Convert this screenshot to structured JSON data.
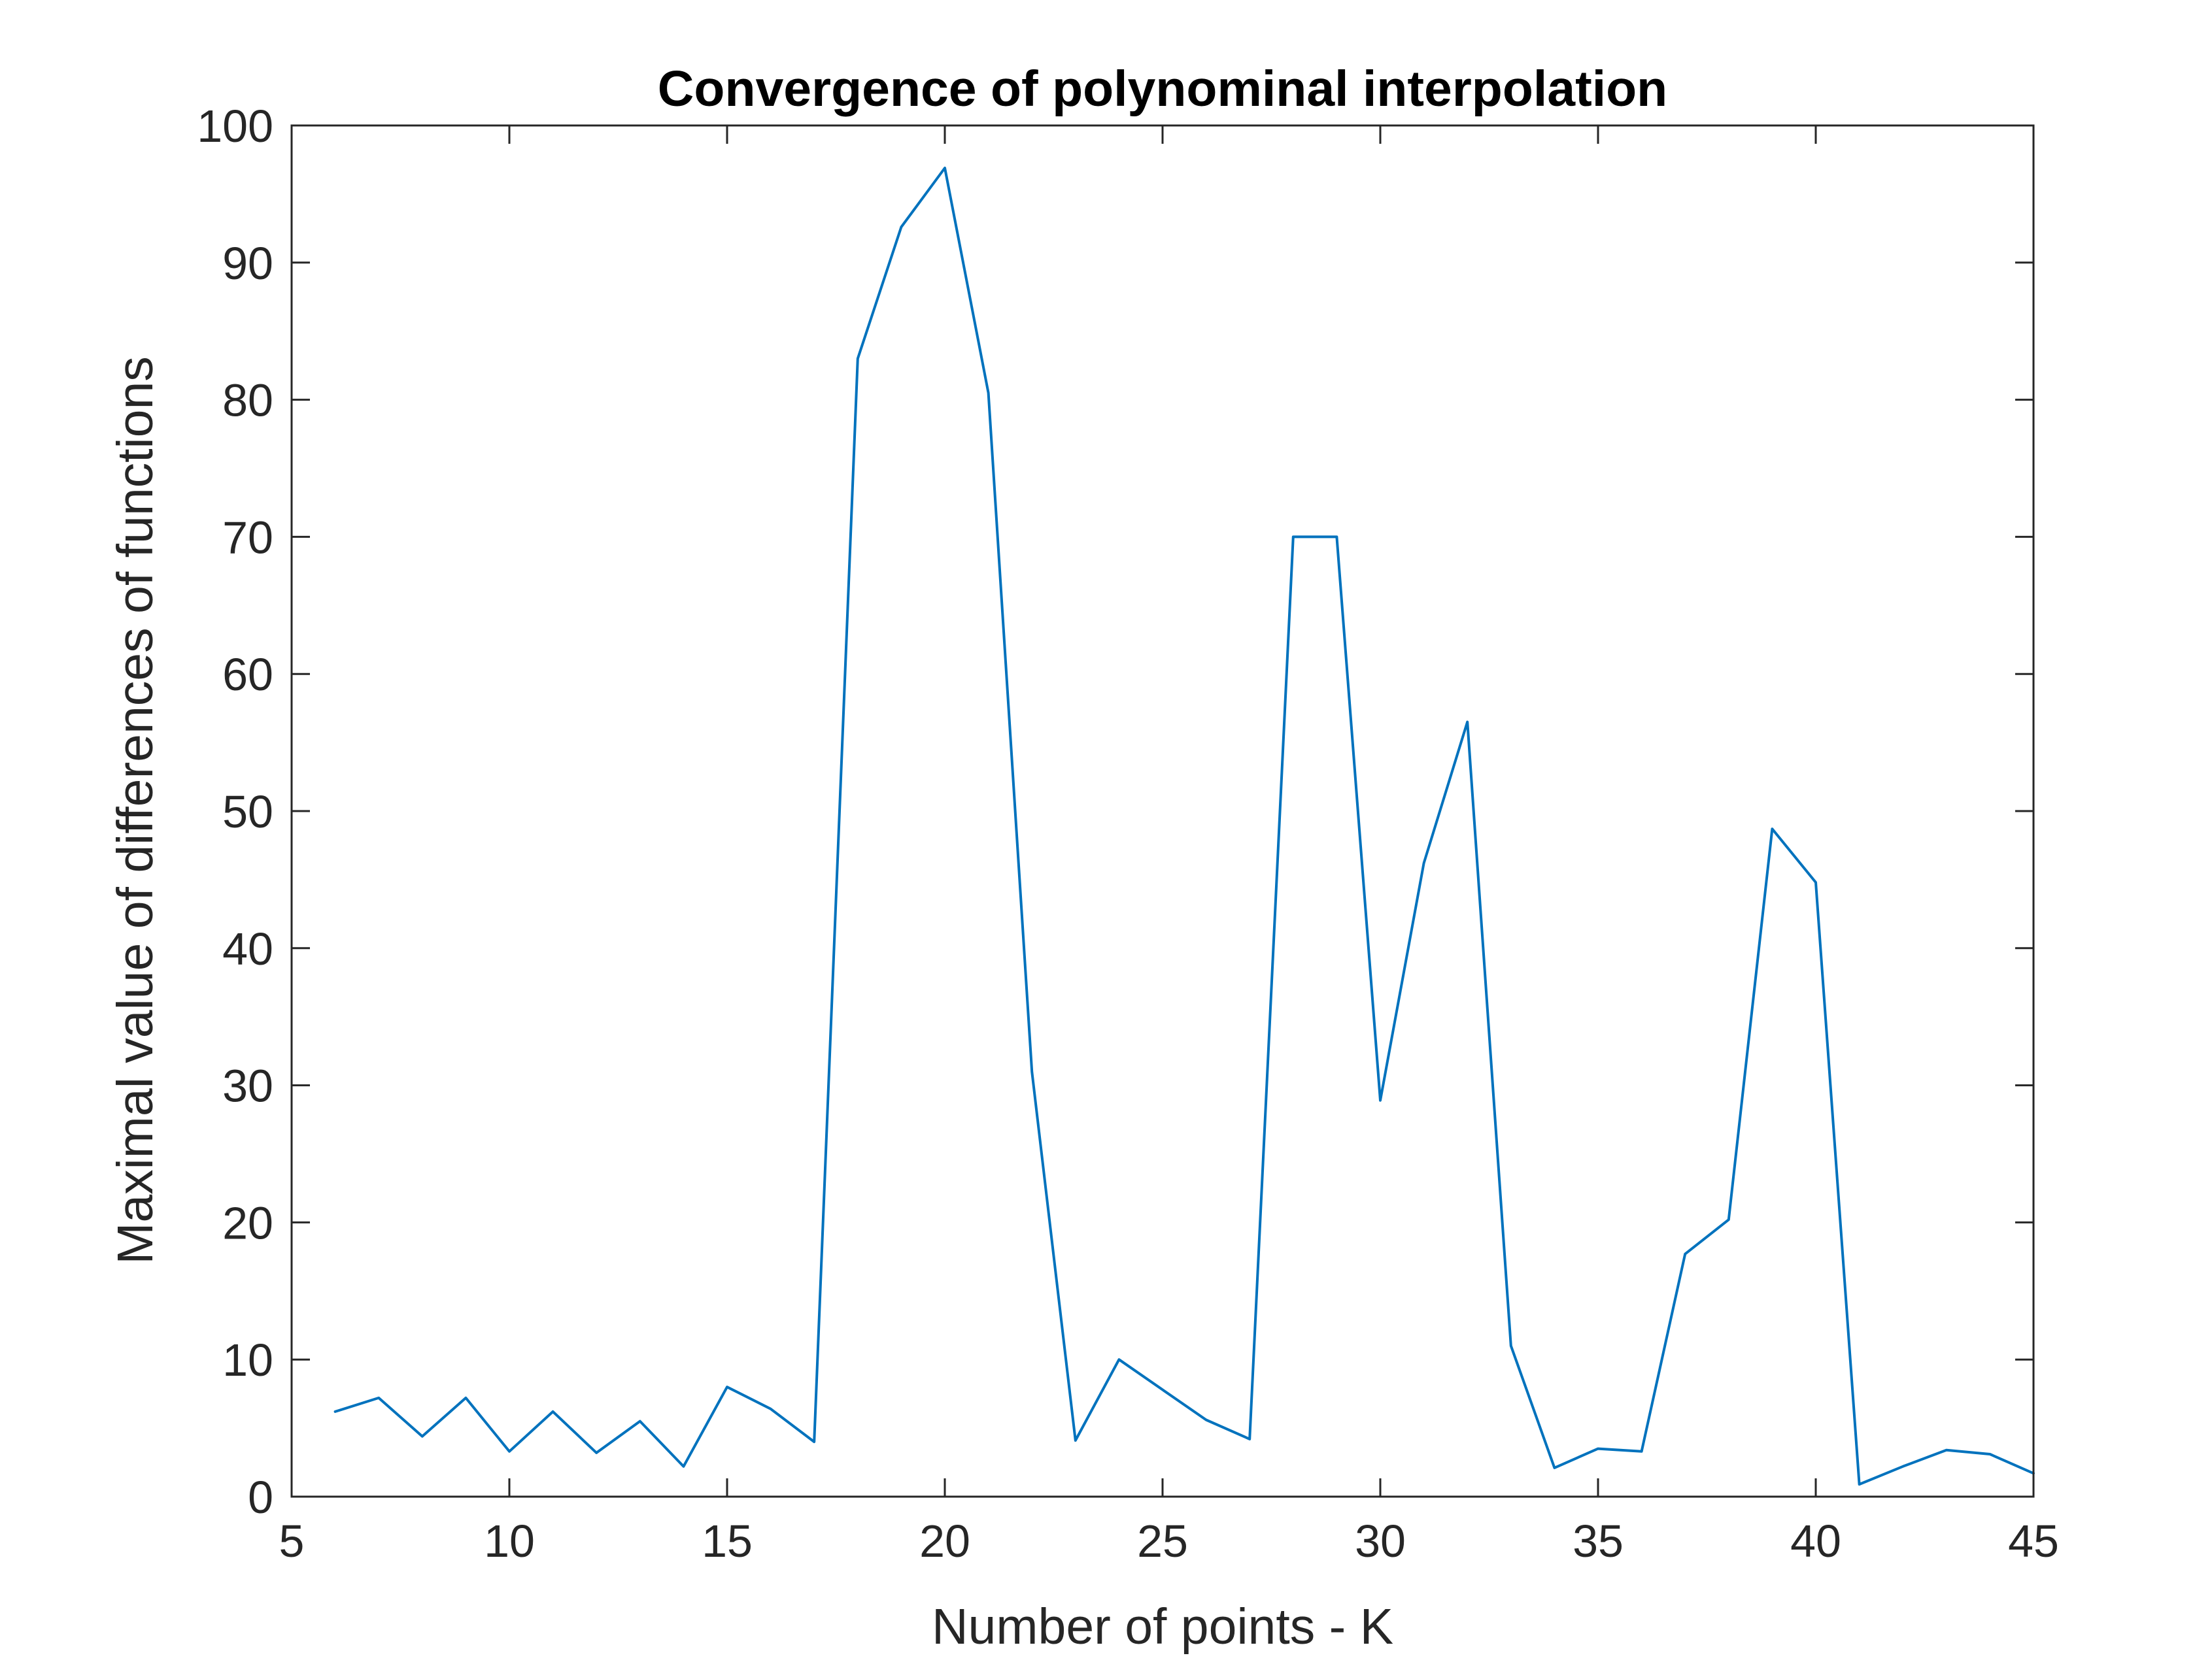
{
  "chart_data": {
    "type": "line",
    "title": "Convergence of polynominal interpolation",
    "xlabel": "Number of points - K",
    "ylabel": "Maximal value of differences of functions",
    "xlim": [
      5,
      45
    ],
    "ylim": [
      0,
      100
    ],
    "xticks": [
      5,
      10,
      15,
      20,
      25,
      30,
      35,
      40,
      45
    ],
    "yticks": [
      0,
      10,
      20,
      30,
      40,
      50,
      60,
      70,
      80,
      90,
      100
    ],
    "grid": false,
    "legend": "none",
    "series": [
      {
        "color": "#0072bd",
        "x": [
          6,
          7,
          8,
          9,
          10,
          11,
          12,
          13,
          14,
          15,
          16,
          17,
          18,
          19,
          20,
          21,
          22,
          23,
          24,
          25,
          26,
          27,
          28,
          29,
          30,
          31,
          32,
          33,
          34,
          35,
          36,
          37,
          38,
          39,
          40,
          41,
          42,
          43,
          44,
          45
        ],
        "y": [
          6.2,
          7.2,
          4.4,
          7.2,
          3.3,
          6.2,
          3.2,
          5.5,
          2.2,
          8.0,
          6.4,
          4.0,
          83.0,
          92.6,
          96.9,
          80.5,
          31.0,
          4.1,
          10.0,
          7.8,
          5.6,
          4.2,
          70.0,
          70.0,
          28.9,
          46.2,
          56.5,
          11.0,
          2.1,
          3.5,
          3.3,
          17.7,
          20.2,
          48.7,
          44.8,
          0.9,
          2.2,
          3.4,
          3.1,
          1.7
        ]
      }
    ]
  }
}
